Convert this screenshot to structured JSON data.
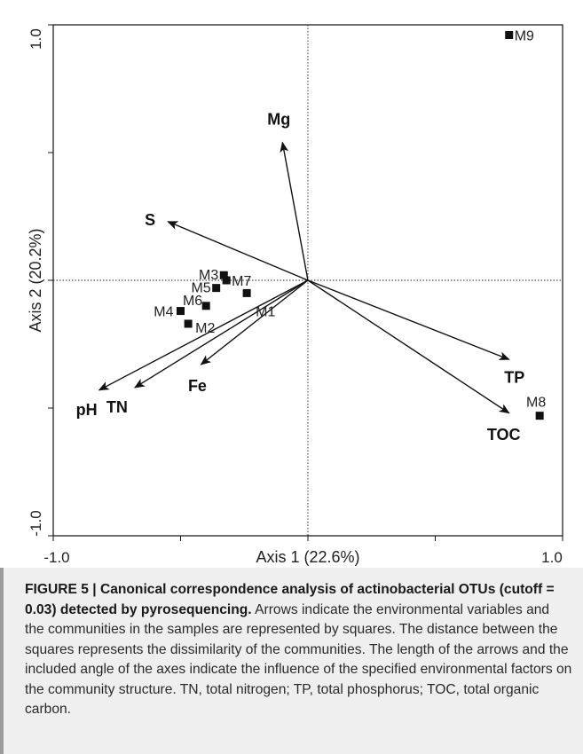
{
  "figure": {
    "caption_label": "FIGURE 5 | Canonical correspondence analysis of actinobacterial OTUs (cutoff = 0.03) detected by pyrosequencing.",
    "caption_text": " Arrows indicate the environmental variables and the communities in the samples are represented by squares. The distance between the squares represents the dissimilarity of the communities. The length of the arrows and the included angle of the axes indicate the influence of the specified environmental factors on the community structure. TN, total nitrogen; TP, total phosphorus; TOC, total organic carbon."
  },
  "chart_data": {
    "type": "scatter",
    "subtype": "CCA biplot",
    "xlabel": "Axis 1 (22.6%)",
    "ylabel": "Axis 2 (20.2%)",
    "xlim": [
      -1.0,
      1.0
    ],
    "ylim": [
      -1.0,
      1.0
    ],
    "x_tick_labels": [
      "-1.0",
      "1.0"
    ],
    "y_tick_labels": [
      "1.0",
      "-1.0"
    ],
    "grid": false,
    "origin_reference_lines": "dotted",
    "samples": [
      {
        "label": "M1",
        "x": -0.24,
        "y": -0.05
      },
      {
        "label": "M2",
        "x": -0.47,
        "y": -0.17
      },
      {
        "label": "M3",
        "x": -0.33,
        "y": 0.02
      },
      {
        "label": "M4",
        "x": -0.5,
        "y": -0.12
      },
      {
        "label": "M5",
        "x": -0.36,
        "y": -0.03
      },
      {
        "label": "M6",
        "x": -0.4,
        "y": -0.1
      },
      {
        "label": "M7",
        "x": -0.32,
        "y": 0.0
      },
      {
        "label": "M8",
        "x": 0.91,
        "y": -0.53
      },
      {
        "label": "M9",
        "x": 0.79,
        "y": 0.96
      }
    ],
    "vectors": [
      {
        "label": "Mg",
        "x": -0.1,
        "y": 0.54
      },
      {
        "label": "S",
        "x": -0.55,
        "y": 0.23
      },
      {
        "label": "TP",
        "x": 0.79,
        "y": -0.31
      },
      {
        "label": "TOC",
        "x": 0.79,
        "y": -0.52
      },
      {
        "label": "pH",
        "x": -0.82,
        "y": -0.43
      },
      {
        "label": "TN",
        "x": -0.68,
        "y": -0.42
      },
      {
        "label": "Fe",
        "x": -0.42,
        "y": -0.33
      }
    ]
  }
}
